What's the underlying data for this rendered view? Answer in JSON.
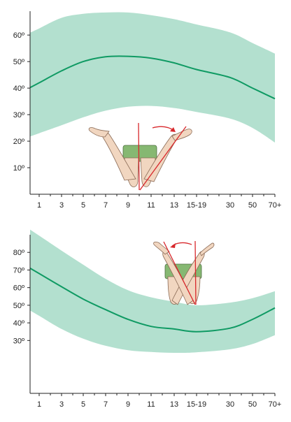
{
  "colors": {
    "band": "#b3e0cf",
    "mean_line": "#0f9a63",
    "axis": "#222222",
    "reference_line": "#d8282c",
    "skin": "#f1d6c0",
    "shorts": "#86b872"
  },
  "chart_data": [
    {
      "type": "area",
      "x_tick_labels": [
        "1",
        "3",
        "5",
        "7",
        "9",
        "11",
        "13",
        "15-19",
        "30",
        "50",
        "70+"
      ],
      "y_tick_labels": [
        "10º",
        "20º",
        "30º",
        "40º",
        "50º",
        "60º"
      ],
      "y_ticks": [
        10,
        20,
        30,
        40,
        50,
        60
      ],
      "ylim": [
        0,
        69
      ],
      "grid": false,
      "series": [
        {
          "role": "mean",
          "values": [
            42,
            46.5,
            50,
            51.8,
            52,
            51.3,
            49.5,
            47,
            44,
            40,
            36
          ]
        },
        {
          "role": "upper",
          "values": [
            62.5,
            66.5,
            68,
            68.5,
            68.5,
            67.5,
            66,
            64,
            61,
            57,
            53
          ]
        },
        {
          "role": "lower",
          "values": [
            23,
            26,
            29,
            31.5,
            33,
            33.3,
            32.5,
            31,
            28.5,
            25,
            19.5
          ]
        }
      ],
      "illustration": "leg-external-rotation"
    },
    {
      "type": "area",
      "x_tick_labels": [
        "1",
        "3",
        "5",
        "7",
        "9",
        "11",
        "13",
        "15-19",
        "30",
        "50",
        "70+"
      ],
      "y_tick_labels": [
        "30º",
        "40º",
        "50º",
        "60º",
        "70º",
        "80º"
      ],
      "y_ticks": [
        30,
        40,
        50,
        60,
        70,
        80
      ],
      "ylim": [
        0,
        90
      ],
      "grid": false,
      "series": [
        {
          "role": "mean",
          "values": [
            68,
            60.5,
            53.5,
            47.5,
            42,
            38,
            36.5,
            35,
            37,
            42,
            48.5
          ]
        },
        {
          "role": "upper",
          "values": [
            89.5,
            81,
            73,
            65,
            58.5,
            54.5,
            52,
            50,
            51.5,
            54,
            58
          ]
        },
        {
          "role": "lower",
          "values": [
            44,
            36.5,
            31,
            27,
            24.5,
            23.5,
            23,
            23.3,
            25,
            28,
            33
          ]
        }
      ],
      "illustration": "leg-internal-rotation"
    }
  ]
}
